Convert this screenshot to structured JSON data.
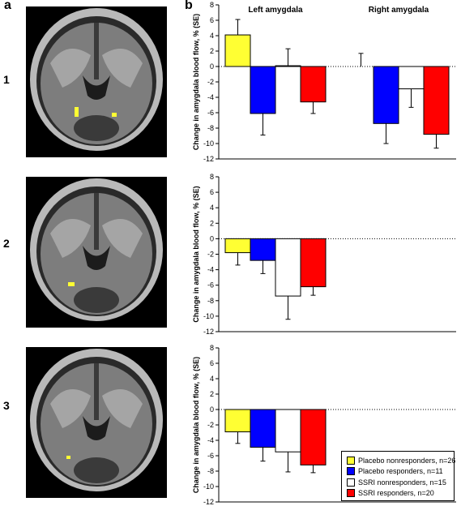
{
  "panel_a_label": "a",
  "panel_b_label": "b",
  "row_labels": [
    "1",
    "2",
    "3"
  ],
  "colors": {
    "placebo_nonresponders": "#ffff33",
    "placebo_responders": "#0000ff",
    "ssri_nonresponders": "#ffffff",
    "ssri_responders": "#ff0000"
  },
  "legend": [
    {
      "label": "Placebo nonresponders, n=26",
      "color": "#ffff33"
    },
    {
      "label": "Placebo responders, n=11",
      "color": "#0000ff"
    },
    {
      "label": "SSRI nonresponders, n=15",
      "color": "#ffffff"
    },
    {
      "label": "SSRI responders, n=20",
      "color": "#ff0000"
    }
  ],
  "chart_data": [
    {
      "type": "bar",
      "ylabel": "Change in amygdala blood flow, % (SE)",
      "ylim": [
        -12,
        8
      ],
      "yticks": [
        8,
        6,
        4,
        2,
        0,
        -2,
        -4,
        -6,
        -8,
        -10,
        -12
      ],
      "groups": [
        "Left amygdala",
        "Right amygdala"
      ],
      "series": [
        {
          "name": "Placebo nonresponders, n=26",
          "values": [
            4.1,
            0
          ],
          "errors": [
            2.0,
            1.7
          ]
        },
        {
          "name": "Placebo responders, n=11",
          "values": [
            -6.1,
            -7.4
          ],
          "errors": [
            2.8,
            2.6
          ]
        },
        {
          "name": "SSRI nonresponders, n=15",
          "values": [
            0.1,
            -2.9
          ],
          "errors": [
            2.2,
            2.4
          ]
        },
        {
          "name": "SSRI responders, n=20",
          "values": [
            -4.6,
            -8.8
          ],
          "errors": [
            1.5,
            1.8
          ]
        }
      ]
    },
    {
      "type": "bar",
      "ylabel": "Change in amygdala blood flow, % (SE)",
      "ylim": [
        -12,
        8
      ],
      "yticks": [
        8,
        6,
        4,
        2,
        0,
        -2,
        -4,
        -6,
        -8,
        -10,
        -12
      ],
      "groups": [
        ""
      ],
      "series": [
        {
          "name": "Placebo nonresponders, n=26",
          "values": [
            -1.8
          ],
          "errors": [
            1.6
          ]
        },
        {
          "name": "Placebo responders, n=11",
          "values": [
            -2.8
          ],
          "errors": [
            1.7
          ]
        },
        {
          "name": "SSRI nonresponders, n=15",
          "values": [
            -7.4
          ],
          "errors": [
            3.0
          ]
        },
        {
          "name": "SSRI responders, n=20",
          "values": [
            -6.2
          ],
          "errors": [
            1.1
          ]
        }
      ]
    },
    {
      "type": "bar",
      "ylabel": "Change in amygdala blood flow, % (SE)",
      "ylim": [
        -12,
        8
      ],
      "yticks": [
        8,
        6,
        4,
        2,
        0,
        -2,
        -4,
        -6,
        -8,
        -10,
        -12
      ],
      "groups": [
        ""
      ],
      "series": [
        {
          "name": "Placebo nonresponders, n=26",
          "values": [
            -2.9
          ],
          "errors": [
            1.5
          ]
        },
        {
          "name": "Placebo responders, n=11",
          "values": [
            -4.9
          ],
          "errors": [
            1.8
          ]
        },
        {
          "name": "SSRI nonresponders, n=15",
          "values": [
            -5.5
          ],
          "errors": [
            2.6
          ]
        },
        {
          "name": "SSRI responders, n=20",
          "values": [
            -7.2
          ],
          "errors": [
            1.0
          ]
        }
      ]
    }
  ]
}
